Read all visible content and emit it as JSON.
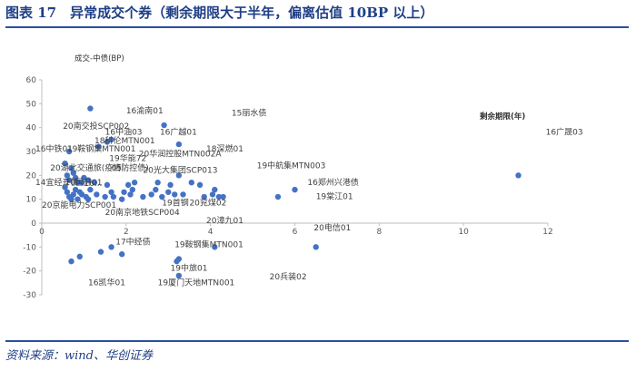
{
  "page": {
    "title": "图表 17　异常成交个券（剩余期限大于半年，偏离估值 10BP 以上）",
    "source": "资料来源：wind、华创证券"
  },
  "colors": {
    "marker": "#4472c4",
    "title": "#1f3f86",
    "rule": "#2b4fa0"
  },
  "chart_data": {
    "type": "scatter",
    "ylabel": "成交-中债(BP)",
    "xlabel": "剩余期限(年)",
    "xlim": [
      0,
      12
    ],
    "ylim": [
      -30,
      60
    ],
    "xticks": [
      0,
      2,
      4,
      6,
      8,
      10,
      12
    ],
    "yticks": [
      -30,
      -20,
      -10,
      0,
      10,
      20,
      30,
      40,
      50,
      60
    ],
    "grid": false,
    "points": [
      [
        0.55,
        25
      ],
      [
        0.6,
        20
      ],
      [
        0.65,
        30
      ],
      [
        0.7,
        23
      ],
      [
        0.75,
        21
      ],
      [
        0.65,
        18
      ],
      [
        0.8,
        19
      ],
      [
        0.85,
        17
      ],
      [
        0.95,
        17
      ],
      [
        1.1,
        18
      ],
      [
        1.25,
        17
      ],
      [
        1.0,
        19
      ],
      [
        0.55,
        15
      ],
      [
        0.6,
        13
      ],
      [
        0.65,
        11
      ],
      [
        0.75,
        12
      ],
      [
        0.8,
        14
      ],
      [
        0.85,
        10
      ],
      [
        0.95,
        12
      ],
      [
        1.05,
        11
      ],
      [
        1.15,
        14
      ],
      [
        1.3,
        12
      ],
      [
        1.5,
        11
      ],
      [
        1.65,
        13
      ],
      [
        0.7,
        10
      ],
      [
        0.9,
        13
      ],
      [
        1.1,
        10
      ],
      [
        1.55,
        16
      ],
      [
        1.7,
        11
      ],
      [
        1.9,
        10
      ],
      [
        1.95,
        13
      ],
      [
        2.1,
        12
      ],
      [
        2.15,
        14
      ],
      [
        2.05,
        16
      ],
      [
        2.2,
        17
      ],
      [
        2.4,
        11
      ],
      [
        2.6,
        12
      ],
      [
        2.7,
        14
      ],
      [
        2.75,
        17
      ],
      [
        2.85,
        11
      ],
      [
        3.0,
        13
      ],
      [
        3.15,
        12
      ],
      [
        3.35,
        12
      ],
      [
        3.05,
        16
      ],
      [
        3.25,
        20
      ],
      [
        3.55,
        17
      ],
      [
        3.75,
        16
      ],
      [
        3.85,
        11
      ],
      [
        4.05,
        12
      ],
      [
        4.1,
        14
      ],
      [
        4.2,
        11
      ],
      [
        4.3,
        11
      ],
      [
        5.6,
        11
      ],
      [
        6.0,
        14
      ],
      [
        1.15,
        48
      ],
      [
        1.35,
        32
      ],
      [
        1.55,
        34
      ],
      [
        1.65,
        35
      ],
      [
        2.9,
        41
      ],
      [
        3.25,
        33
      ],
      [
        11.3,
        20
      ],
      [
        4.1,
        -10
      ],
      [
        6.5,
        -10
      ],
      [
        1.65,
        -10
      ],
      [
        1.4,
        -12
      ],
      [
        1.9,
        -13
      ],
      [
        0.7,
        -16
      ],
      [
        0.9,
        -14
      ],
      [
        3.2,
        -16
      ],
      [
        3.25,
        -15
      ],
      [
        3.25,
        -22
      ]
    ],
    "annotations": [
      {
        "text": "16渝南01",
        "x": 2.0,
        "y": 46
      },
      {
        "text": "15丽水债",
        "x": 4.5,
        "y": 45
      },
      {
        "text": "20南交投SCP002",
        "x": 0.5,
        "y": 39.5
      },
      {
        "text": "16中油03",
        "x": 1.5,
        "y": 37
      },
      {
        "text": "16广越01",
        "x": 2.8,
        "y": 37
      },
      {
        "text": "18科伦MTN001",
        "x": 1.25,
        "y": 33.5
      },
      {
        "text": "16中铁01",
        "x": -0.15,
        "y": 30
      },
      {
        "text": "19鞍钢集MTN001",
        "x": 0.6,
        "y": 30
      },
      {
        "text": "18深燃01",
        "x": 3.9,
        "y": 30
      },
      {
        "text": "20华润控股MTN002A",
        "x": 2.3,
        "y": 28
      },
      {
        "text": "19华能72",
        "x": 1.6,
        "y": 26
      },
      {
        "text": "19中航集MTN003",
        "x": 5.1,
        "y": 23
      },
      {
        "text": "20湖北交通旅(疫情防控债)",
        "x": 0.2,
        "y": 22
      },
      {
        "text": "05",
        "x": 1.65,
        "y": 22
      },
      {
        "text": "20光大集团SCP013",
        "x": 2.4,
        "y": 21
      },
      {
        "text": "14宜经开债",
        "x": -0.15,
        "y": 16
      },
      {
        "text": "20国开01",
        "x": 0.55,
        "y": 16
      },
      {
        "text": "16...",
        "x": 1.0,
        "y": 15.5
      },
      {
        "text": "16郑州兴港债",
        "x": 6.3,
        "y": 16
      },
      {
        "text": "19棠江01",
        "x": 6.5,
        "y": 10
      },
      {
        "text": "19首钢",
        "x": 2.85,
        "y": 7.5
      },
      {
        "text": "20兖煤02",
        "x": 3.5,
        "y": 7.5
      },
      {
        "text": "20京能电力SCP001",
        "x": 0.0,
        "y": 6.5
      },
      {
        "text": "20南京地铁SCP004",
        "x": 1.5,
        "y": 3.5
      },
      {
        "text": "20漳九01",
        "x": 3.9,
        "y": 0
      },
      {
        "text": "20电信01",
        "x": 6.45,
        "y": -3
      },
      {
        "text": "17中经债",
        "x": 1.75,
        "y": -9
      },
      {
        "text": "19鞍钢集MTN001",
        "x": 3.15,
        "y": -10
      },
      {
        "text": "19中旅01",
        "x": 3.05,
        "y": -20
      },
      {
        "text": "16凯华01",
        "x": 1.1,
        "y": -26
      },
      {
        "text": "19厦门天地MTN001",
        "x": 2.75,
        "y": -26
      },
      {
        "text": "20兵装02",
        "x": 5.4,
        "y": -23.5
      },
      {
        "text": "16广晟03",
        "x": 11.95,
        "y": 37
      }
    ]
  }
}
